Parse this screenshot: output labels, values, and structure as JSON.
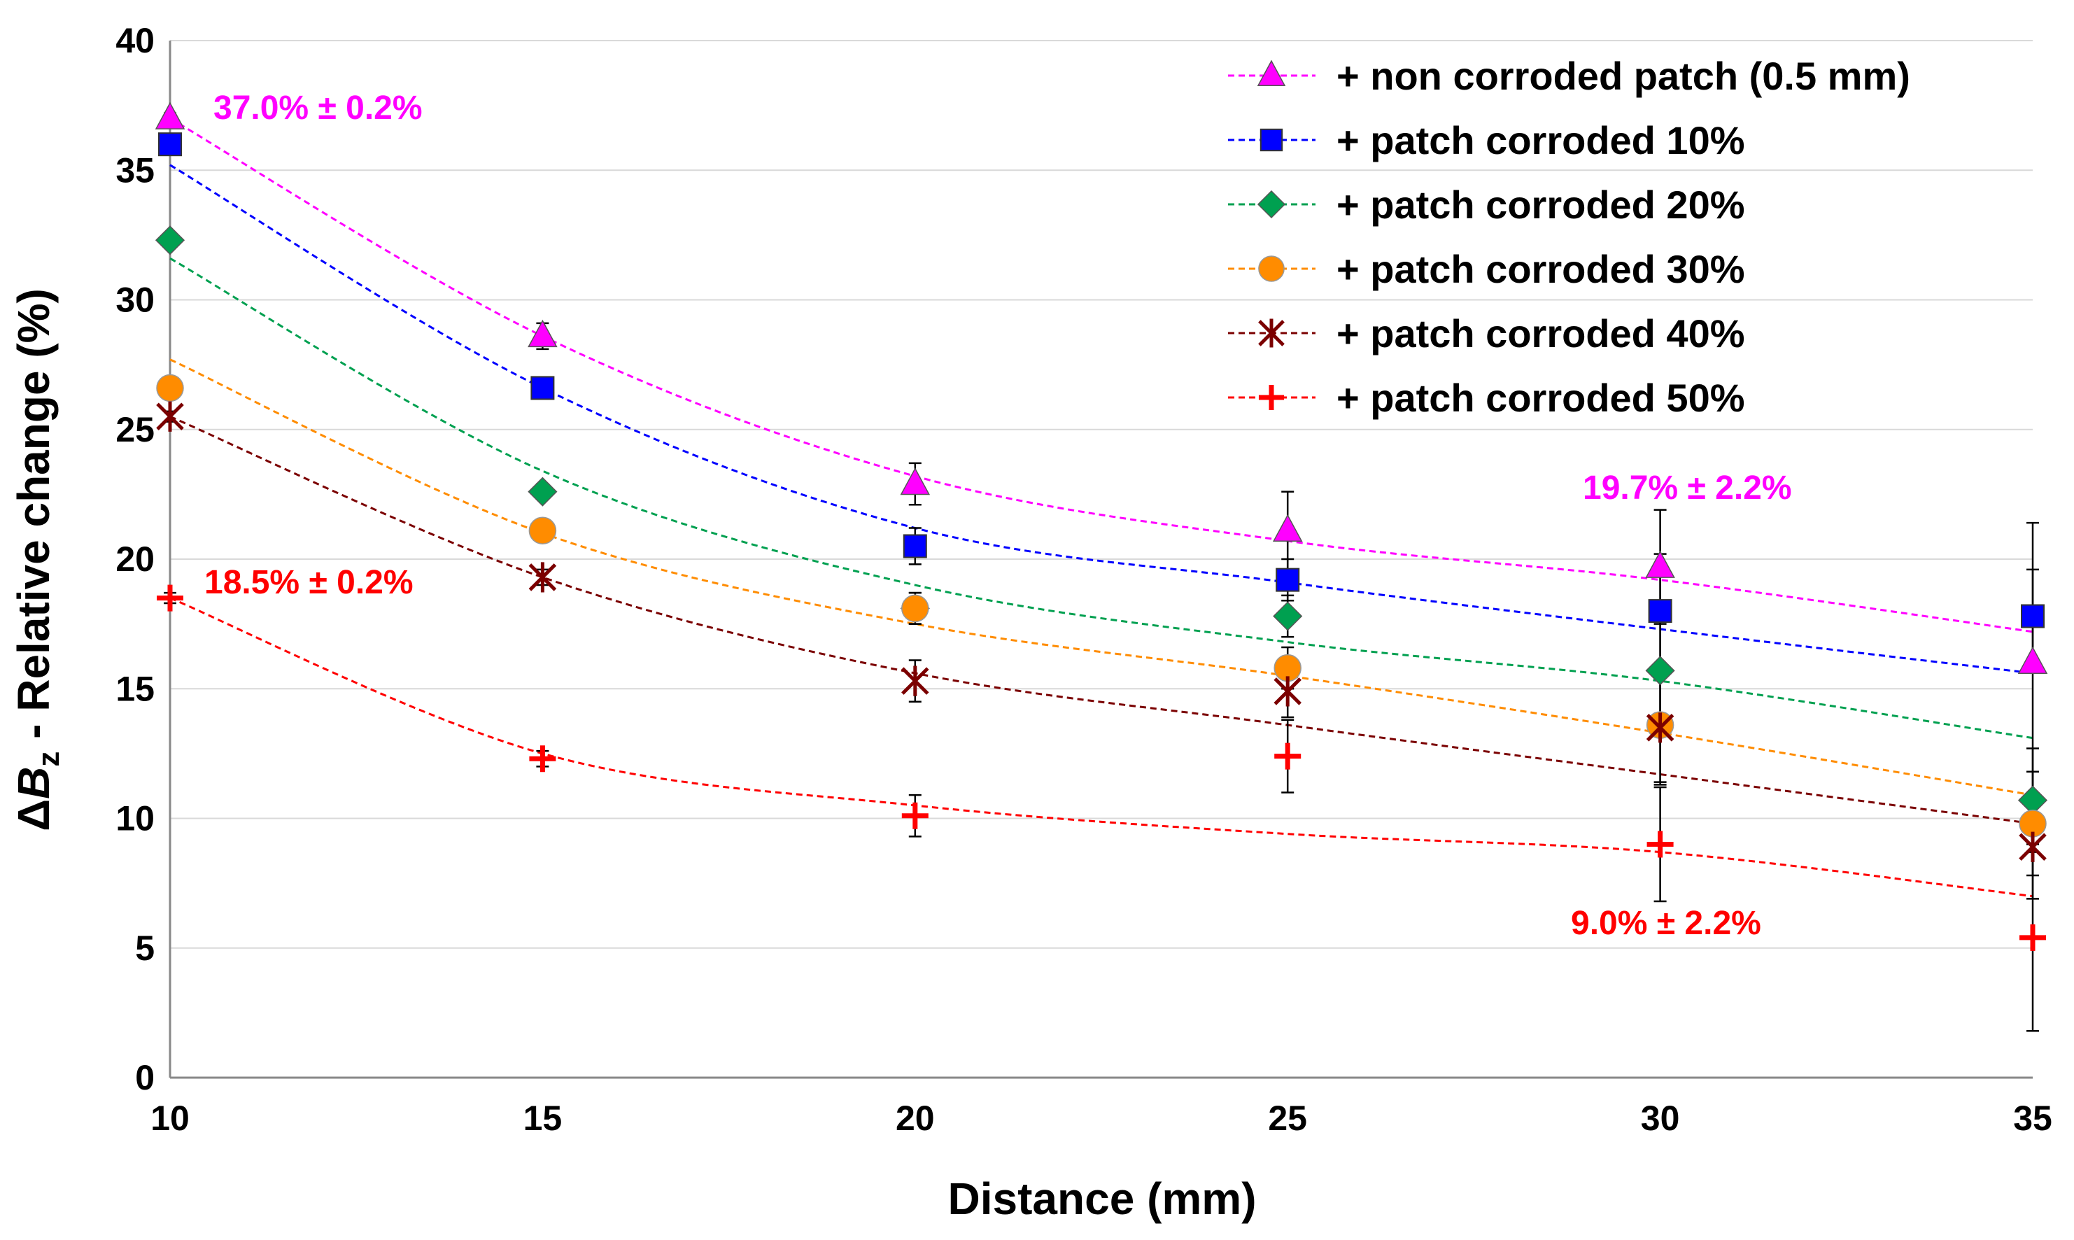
{
  "chart_data": {
    "type": "scatter",
    "title": "",
    "xlabel": "Distance (mm)",
    "ylabel": {
      "prefix": "Δ",
      "var": "B",
      "sub": "z",
      "suffix": " - Relative change (%)"
    },
    "xlim": [
      10,
      35
    ],
    "ylim": [
      0,
      40
    ],
    "x": [
      10,
      15,
      20,
      25,
      30,
      35
    ],
    "x_tick_labels": [
      "10",
      "15",
      "20",
      "25",
      "30",
      "35"
    ],
    "y_ticks": [
      0,
      5,
      10,
      15,
      20,
      25,
      30,
      35,
      40
    ],
    "y_tick_labels": [
      "0",
      "5",
      "10",
      "15",
      "20",
      "25",
      "30",
      "35",
      "40"
    ],
    "grid": "horizontal",
    "legend_position": "top-right",
    "series": [
      {
        "name": "+ non corroded patch (0.5 mm)",
        "color": "#ff00ff",
        "marker": "triangle",
        "values": [
          37.0,
          28.6,
          22.9,
          21.1,
          19.7,
          16.0
        ],
        "errors": [
          0.2,
          0.5,
          0.8,
          1.5,
          2.2,
          5.4
        ],
        "fit": [
          37.0,
          28.6,
          23.2,
          20.7,
          19.2,
          17.2
        ]
      },
      {
        "name": "+ patch corroded 10%",
        "color": "#0000ff",
        "marker": "square",
        "values": [
          36.0,
          26.6,
          20.5,
          19.2,
          18.0,
          17.8
        ],
        "errors": [
          0.2,
          0.3,
          0.7,
          0.8,
          2.2,
          1.8
        ],
        "fit": [
          35.2,
          26.6,
          21.2,
          19.1,
          17.3,
          15.6
        ]
      },
      {
        "name": "+ patch corroded 20%",
        "color": "#00a050",
        "marker": "diamond",
        "values": [
          32.3,
          22.6,
          18.1,
          17.8,
          15.7,
          10.7
        ],
        "errors": [
          0.2,
          0.3,
          0.6,
          0.8,
          2.2,
          2.0
        ],
        "fit": [
          31.6,
          23.4,
          19.0,
          16.8,
          15.3,
          13.1
        ]
      },
      {
        "name": "+ patch corroded 30%",
        "color": "#ff8c00",
        "marker": "circle",
        "values": [
          26.6,
          21.1,
          18.1,
          15.8,
          13.6,
          9.8
        ],
        "errors": [
          0.2,
          0.3,
          0.6,
          0.8,
          2.2,
          2.0
        ],
        "fit": [
          27.7,
          21.0,
          17.5,
          15.5,
          13.3,
          10.9
        ]
      },
      {
        "name": "+ patch corroded 40%",
        "color": "#7b0000",
        "marker": "star",
        "values": [
          25.5,
          19.3,
          15.3,
          14.9,
          13.5,
          8.9
        ],
        "errors": [
          0.2,
          0.3,
          0.8,
          1.0,
          2.2,
          2.0
        ],
        "fit": [
          25.5,
          19.3,
          15.6,
          13.6,
          11.7,
          9.8
        ]
      },
      {
        "name": "+ patch corroded 50%",
        "color": "#ff0000",
        "marker": "plus",
        "values": [
          18.5,
          12.3,
          10.1,
          12.4,
          9.0,
          5.4
        ],
        "errors": [
          0.2,
          0.3,
          0.8,
          1.4,
          2.2,
          3.6
        ],
        "fit": [
          18.5,
          12.5,
          10.5,
          9.4,
          8.7,
          7.0
        ]
      }
    ],
    "annotations": [
      {
        "text": "37.0% ± 0.2%",
        "color": "#ff00ff"
      },
      {
        "text": "19.7% ± 2.2%",
        "color": "#ff00ff"
      },
      {
        "text": "18.5% ± 0.2%",
        "color": "#ff0000"
      },
      {
        "text": "9.0% ± 2.2%",
        "color": "#ff0000"
      }
    ]
  }
}
